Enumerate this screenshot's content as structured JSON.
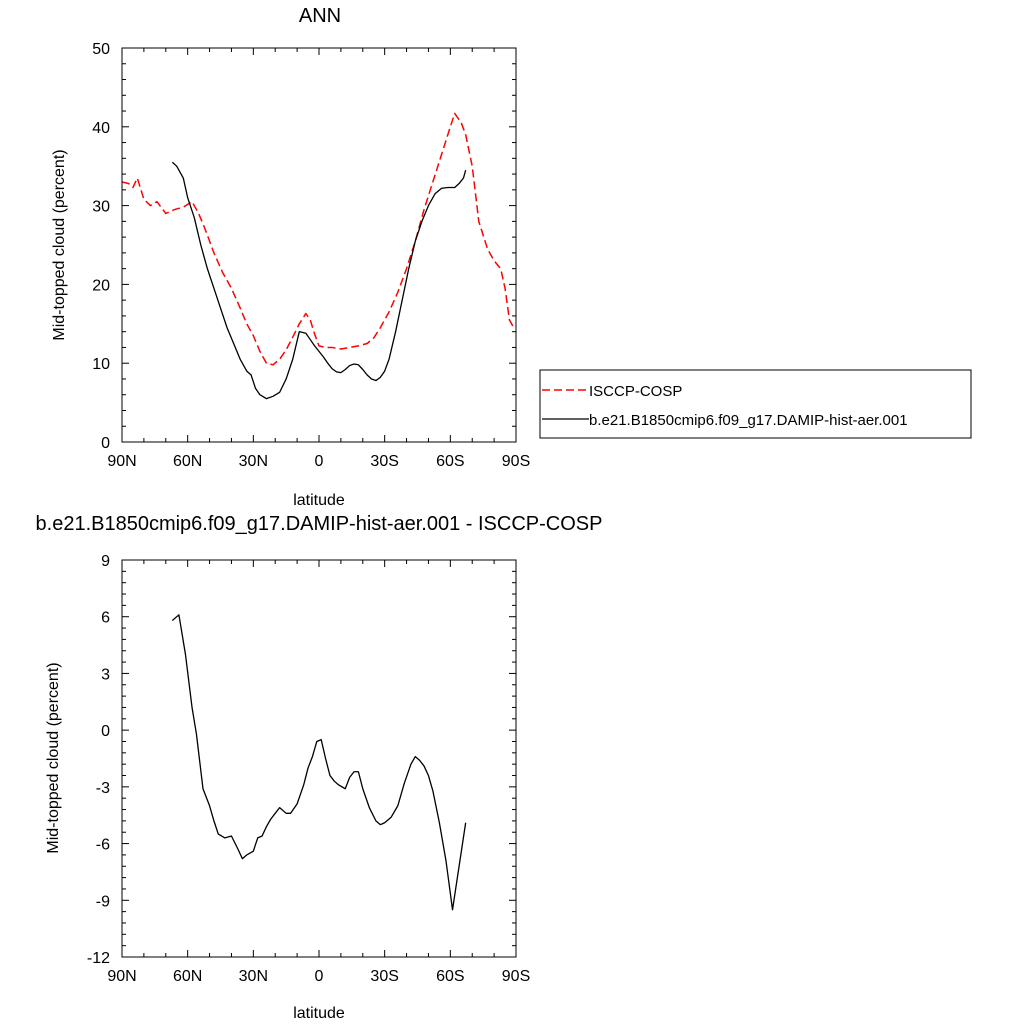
{
  "chart_data": [
    {
      "type": "line",
      "title": "ANN",
      "xlabel": "latitude",
      "ylabel": "Mid-topped cloud (percent)",
      "xlim": [
        90,
        -90
      ],
      "ylim": [
        0,
        50
      ],
      "xticks": [
        {
          "value": 90,
          "label": "90N"
        },
        {
          "value": 60,
          "label": "60N"
        },
        {
          "value": 30,
          "label": "30N"
        },
        {
          "value": 0,
          "label": "0"
        },
        {
          "value": -30,
          "label": "30S"
        },
        {
          "value": -60,
          "label": "60S"
        },
        {
          "value": -90,
          "label": "90S"
        }
      ],
      "yticks": [
        {
          "value": 0,
          "label": "0"
        },
        {
          "value": 10,
          "label": "10"
        },
        {
          "value": 20,
          "label": "20"
        },
        {
          "value": 30,
          "label": "30"
        },
        {
          "value": 40,
          "label": "40"
        },
        {
          "value": 50,
          "label": "50"
        }
      ],
      "legend": {
        "placement": "right"
      },
      "series": [
        {
          "name": "ISCCP-COSP",
          "color": "#ff0000",
          "dash": "dashed",
          "x": [
            90,
            87,
            85,
            83,
            80,
            77,
            74,
            70,
            66,
            62,
            58,
            55,
            52,
            48,
            44,
            40,
            36,
            33,
            30,
            27,
            24,
            21,
            18,
            15,
            12,
            9,
            6,
            4,
            2,
            0,
            -3,
            -6,
            -10,
            -14,
            -18,
            -22,
            -25,
            -28,
            -32,
            -36,
            -40,
            -44,
            -48,
            -52,
            -56,
            -60,
            -62,
            -65,
            -67,
            -70,
            -73,
            -77,
            -80,
            -83,
            -85,
            -87,
            -89
          ],
          "y": [
            33.0,
            32.8,
            32.3,
            33.5,
            30.8,
            30.0,
            30.5,
            29.0,
            29.5,
            29.8,
            30.5,
            29.0,
            27.0,
            24.0,
            21.5,
            19.5,
            17.0,
            15.0,
            13.5,
            11.5,
            10.0,
            9.8,
            10.5,
            11.7,
            13.3,
            15.0,
            16.3,
            15.5,
            13.7,
            12.2,
            12.0,
            12.0,
            11.8,
            12.0,
            12.2,
            12.5,
            13.2,
            14.5,
            16.5,
            19.0,
            22.0,
            25.5,
            29.5,
            33.0,
            36.5,
            40.0,
            41.7,
            40.5,
            39.0,
            35.0,
            28.0,
            24.5,
            23.0,
            22.0,
            19.5,
            15.5,
            14.5
          ]
        },
        {
          "name": "b.e21.B1850cmip6.f09_g17.DAMIP-hist-aer.001",
          "color": "#000000",
          "dash": "solid",
          "x": [
            67,
            65,
            62,
            60,
            57,
            54,
            51,
            48,
            45,
            42,
            39,
            36,
            33,
            31,
            29,
            27,
            24,
            21,
            18,
            15,
            12,
            9,
            6,
            4,
            2,
            0,
            -2,
            -4,
            -6,
            -8,
            -10,
            -12,
            -14,
            -16,
            -18,
            -20,
            -22,
            -24,
            -26,
            -28,
            -30,
            -32,
            -35,
            -38,
            -41,
            -44,
            -47,
            -50,
            -53,
            -56,
            -59,
            -62,
            -64,
            -66,
            -67
          ],
          "y": [
            35.5,
            35.0,
            33.5,
            31.0,
            28.5,
            25.0,
            22.0,
            19.5,
            17.0,
            14.5,
            12.5,
            10.5,
            9.0,
            8.5,
            6.8,
            6.0,
            5.5,
            5.8,
            6.3,
            8.0,
            10.5,
            14.0,
            13.8,
            13.0,
            12.2,
            11.5,
            10.8,
            10.0,
            9.3,
            8.9,
            8.8,
            9.2,
            9.7,
            9.9,
            9.8,
            9.2,
            8.5,
            8.0,
            7.8,
            8.2,
            9.0,
            10.5,
            14.0,
            18.0,
            22.0,
            25.5,
            28.0,
            30.0,
            31.5,
            32.2,
            32.3,
            32.3,
            32.8,
            33.5,
            34.5
          ]
        }
      ]
    },
    {
      "type": "line",
      "title": "b.e21.B1850cmip6.f09_g17.DAMIP-hist-aer.001 - ISCCP-COSP",
      "xlabel": "latitude",
      "ylabel": "Mid-topped cloud (percent)",
      "xlim": [
        90,
        -90
      ],
      "ylim": [
        -12,
        9
      ],
      "xticks": [
        {
          "value": 90,
          "label": "90N"
        },
        {
          "value": 60,
          "label": "60N"
        },
        {
          "value": 30,
          "label": "30N"
        },
        {
          "value": 0,
          "label": "0"
        },
        {
          "value": -30,
          "label": "30S"
        },
        {
          "value": -60,
          "label": "60S"
        },
        {
          "value": -90,
          "label": "90S"
        }
      ],
      "yticks": [
        {
          "value": 9,
          "label": "9"
        },
        {
          "value": 6,
          "label": "6"
        },
        {
          "value": 3,
          "label": "3"
        },
        {
          "value": 0,
          "label": "0"
        },
        {
          "value": -3,
          "label": "-3"
        },
        {
          "value": -6,
          "label": "-6"
        },
        {
          "value": -9,
          "label": "-9"
        },
        {
          "value": -12,
          "label": "-12"
        }
      ],
      "series": [
        {
          "color": "#000000",
          "dash": "solid",
          "x": [
            67,
            64,
            61,
            58,
            56,
            53,
            50,
            48,
            46,
            43,
            40,
            37,
            35,
            33,
            30,
            28,
            26,
            24,
            22,
            20,
            18,
            15,
            13,
            10,
            7,
            5,
            3,
            1,
            -1,
            -3,
            -5,
            -7,
            -9,
            -12,
            -14,
            -16,
            -18,
            -20,
            -23,
            -26,
            -28,
            -30,
            -33,
            -36,
            -39,
            -42,
            -44,
            -46,
            -48,
            -50,
            -52,
            -55,
            -58,
            -61,
            -64,
            -67
          ],
          "y": [
            5.8,
            6.1,
            4.0,
            1.2,
            -0.2,
            -3.1,
            -4.0,
            -4.8,
            -5.5,
            -5.7,
            -5.6,
            -6.3,
            -6.8,
            -6.6,
            -6.4,
            -5.7,
            -5.6,
            -5.1,
            -4.7,
            -4.4,
            -4.1,
            -4.4,
            -4.4,
            -3.9,
            -2.9,
            -2.0,
            -1.4,
            -0.6,
            -0.5,
            -1.5,
            -2.4,
            -2.7,
            -2.9,
            -3.1,
            -2.5,
            -2.2,
            -2.2,
            -3.1,
            -4.1,
            -4.8,
            -5.0,
            -4.9,
            -4.6,
            -4.0,
            -2.8,
            -1.8,
            -1.4,
            -1.6,
            -1.9,
            -2.4,
            -3.2,
            -4.9,
            -6.9,
            -9.5,
            -7.2,
            -4.9
          ]
        }
      ]
    }
  ]
}
